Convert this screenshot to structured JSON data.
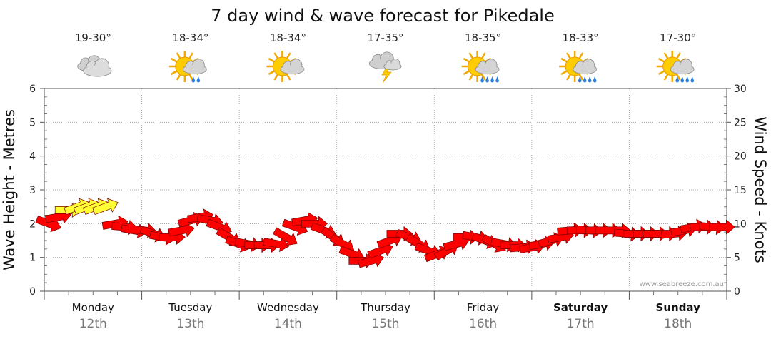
{
  "chart_data": {
    "type": "line",
    "title": "7 day wind & wave forecast for Pikedale",
    "left_axis": {
      "label": "Wave Height - Metres",
      "range": [
        0,
        6
      ],
      "ticks": [
        "0",
        "1",
        "2",
        "3",
        "4",
        "5",
        "6"
      ]
    },
    "right_axis": {
      "label": "Wind Speed - Knots",
      "range": [
        0,
        30
      ],
      "ticks": [
        "0",
        "5",
        "10",
        "15",
        "20",
        "25",
        "30"
      ]
    },
    "days": [
      {
        "name": "Monday",
        "date": "12th",
        "temps": "19-30°",
        "icon": "cloudy-icon",
        "bold": false
      },
      {
        "name": "Tuesday",
        "date": "13th",
        "temps": "18-34°",
        "icon": "sun-shower-icon",
        "bold": false
      },
      {
        "name": "Wednesday",
        "date": "14th",
        "temps": "18-34°",
        "icon": "partly-cloudy-icon",
        "bold": false
      },
      {
        "name": "Thursday",
        "date": "15th",
        "temps": "17-35°",
        "icon": "storm-icon",
        "bold": false
      },
      {
        "name": "Friday",
        "date": "16th",
        "temps": "18-35°",
        "icon": "sun-rain-icon",
        "bold": false
      },
      {
        "name": "Saturday",
        "date": "17th",
        "temps": "18-33°",
        "icon": "sun-rain-icon",
        "bold": true
      },
      {
        "name": "Sunday",
        "date": "18th",
        "temps": "17-30°",
        "icon": "sun-rain-icon",
        "bold": true
      }
    ],
    "wind_speed_knots": [
      10,
      11,
      12,
      12.5,
      12.5,
      12.5,
      12.5,
      10,
      9.5,
      9,
      9,
      8.5,
      8,
      8,
      9,
      10.5,
      11,
      10.5,
      9.5,
      8,
      7,
      7,
      6.8,
      6.8,
      7,
      8,
      9.5,
      10.5,
      10,
      9,
      8,
      7,
      5.5,
      4.5,
      4.5,
      6,
      7.5,
      8.5,
      8,
      7,
      6,
      5.5,
      6,
      7,
      8,
      8,
      7.5,
      7,
      7,
      6.8,
      6.5,
      6.5,
      7,
      7.5,
      8,
      9,
      9,
      9,
      9,
      9,
      9,
      8.5,
      8.5,
      8.5,
      8.5,
      8.5,
      8.5,
      9,
      9.5,
      9.5,
      9.5,
      9.5
    ],
    "wind_direction_deg": [
      110,
      80,
      90,
      70,
      70,
      70,
      70,
      80,
      95,
      100,
      95,
      110,
      100,
      90,
      80,
      75,
      80,
      100,
      110,
      120,
      110,
      100,
      90,
      90,
      100,
      120,
      110,
      80,
      90,
      110,
      125,
      120,
      110,
      90,
      75,
      70,
      70,
      90,
      110,
      120,
      110,
      70,
      60,
      75,
      90,
      100,
      110,
      120,
      100,
      90,
      85,
      80,
      80,
      75,
      80,
      85,
      90,
      95,
      90,
      90,
      90,
      95,
      90,
      90,
      90,
      90,
      85,
      80,
      80,
      90,
      95,
      90
    ],
    "wind_colors": {
      "light": "#ffff33",
      "moderate": "#ff0000"
    },
    "grid": true,
    "credit": "www.seabreeze.com.au"
  }
}
